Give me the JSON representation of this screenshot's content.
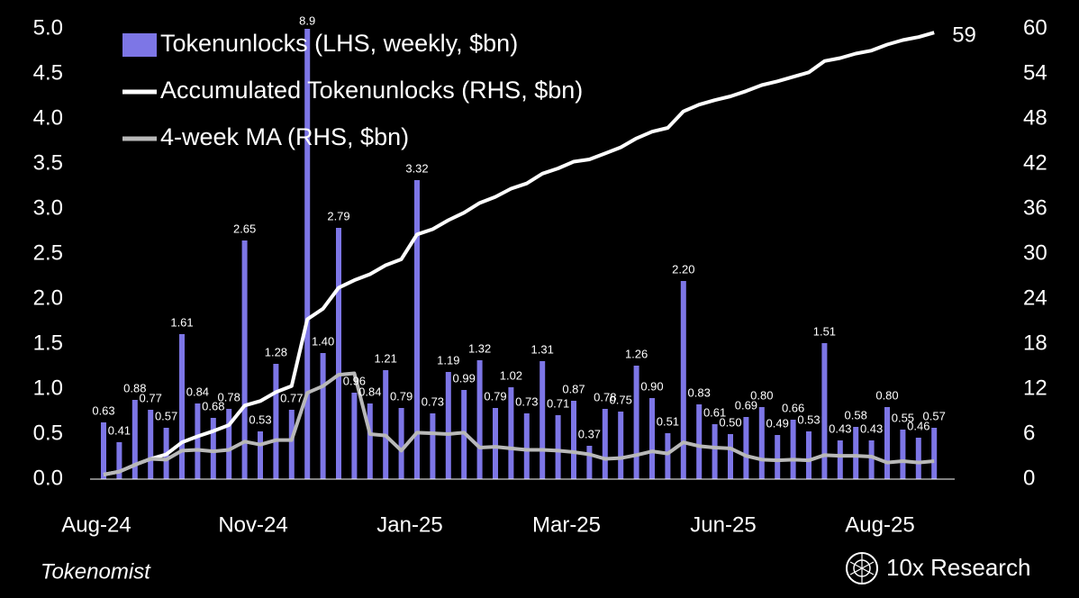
{
  "chart_data": {
    "type": "bar",
    "legend": "upper left",
    "annotation": "59",
    "source": "Tokenomist",
    "brand": "10x Research",
    "categories": [
      "Aug-24",
      null,
      null,
      null,
      null,
      null,
      null,
      null,
      null,
      null,
      "Nov-24",
      null,
      null,
      null,
      null,
      null,
      null,
      null,
      null,
      null,
      "Jan-25",
      null,
      null,
      null,
      null,
      null,
      null,
      null,
      null,
      null,
      "Mar-25",
      null,
      null,
      null,
      null,
      null,
      null,
      null,
      null,
      null,
      "Jun-25",
      null,
      null,
      null,
      null,
      null,
      null,
      null,
      null,
      null,
      "Aug-25",
      null,
      null,
      null
    ],
    "ylim": [
      0,
      5
    ],
    "yticks": [
      {
        "value": 0,
        "label": "0.0"
      },
      0.5,
      {
        "value": 1,
        "label": "1.0"
      },
      1.5,
      {
        "value": 2,
        "label": "2.0"
      },
      2.5,
      {
        "value": 3,
        "label": "3.0"
      },
      3.5,
      {
        "value": 4,
        "label": "4.0"
      },
      4.5,
      {
        "value": 5,
        "label": "5.0"
      }
    ],
    "y2lim": [
      0,
      60
    ],
    "y2ticks": [
      0,
      6,
      12,
      18,
      24,
      30,
      36,
      42,
      48,
      54,
      60
    ],
    "series": [
      {
        "name": "Tokenunlocks (LHS, weekly, $bn)",
        "type": "bar",
        "axis": "y",
        "color": "#7d76e6",
        "values": [
          0.63,
          0.41,
          0.88,
          0.77,
          0.57,
          1.61,
          0.84,
          0.68,
          0.78,
          2.65,
          0.53,
          1.28,
          0.77,
          8.9,
          1.4,
          2.79,
          0.96,
          0.84,
          1.21,
          0.79,
          3.32,
          0.73,
          1.19,
          0.99,
          1.32,
          0.79,
          1.02,
          0.73,
          1.31,
          0.71,
          0.87,
          0.37,
          0.78,
          0.75,
          1.26,
          0.9,
          0.51,
          2.2,
          0.83,
          0.61,
          0.5,
          0.69,
          0.8,
          0.49,
          0.66,
          0.53,
          1.51,
          0.43,
          0.58,
          0.43,
          0.8,
          0.55,
          0.46,
          0.57
        ],
        "value_labels": [
          "0.63",
          "0.41",
          "0.88",
          "0.77",
          "0.57",
          "1.61",
          "0.84",
          "0.68",
          "0.78",
          "2.65",
          "0.53",
          "1.28",
          "0.77",
          "8.9",
          "1.40",
          "2.79",
          "0.96",
          "0.84",
          "1.21",
          "0.79",
          "3.32",
          "0.73",
          "1.19",
          "0.99",
          "1.32",
          "0.79",
          "1.02",
          "0.73",
          "1.31",
          "0.71",
          "0.87",
          "0.37",
          "0.78",
          "0.75",
          "1.26",
          "0.90",
          "0.51",
          "2.20",
          "0.83",
          "0.61",
          "0.50",
          "0.69",
          "0.80",
          "0.49",
          "0.66",
          "0.53",
          "1.51",
          "0.43",
          "0.58",
          "0.43",
          "0.80",
          "0.55",
          "0.46",
          "0.57"
        ]
      },
      {
        "name": "Accumulated Tokenunlocks (RHS, $bn)",
        "type": "line",
        "axis": "y2",
        "color": "#ffffff",
        "values": [
          0.6,
          1.0,
          1.9,
          2.7,
          3.3,
          4.9,
          5.7,
          6.4,
          7.2,
          9.8,
          10.4,
          11.6,
          12.4,
          21.3,
          22.7,
          25.5,
          26.5,
          27.3,
          28.5,
          29.3,
          32.6,
          33.3,
          34.5,
          35.5,
          36.8,
          37.6,
          38.7,
          39.4,
          40.7,
          41.4,
          42.3,
          42.6,
          43.4,
          44.2,
          45.4,
          46.3,
          46.8,
          49.0,
          49.9,
          50.5,
          51.0,
          51.7,
          52.5,
          53.0,
          53.6,
          54.2,
          55.7,
          56.1,
          56.7,
          57.1,
          57.9,
          58.5,
          58.9,
          59.5
        ]
      },
      {
        "name": "4-week MA (RHS, $bn)",
        "type": "line",
        "axis": "y2",
        "color": "#b8b8b8",
        "values": [
          0.6,
          1.0,
          1.9,
          2.7,
          2.6,
          3.8,
          3.9,
          3.7,
          3.9,
          5.0,
          4.6,
          5.2,
          5.2,
          11.5,
          12.4,
          13.9,
          14.1,
          6.0,
          5.8,
          3.8,
          6.2,
          6.1,
          6.0,
          6.2,
          4.2,
          4.3,
          4.1,
          3.9,
          3.9,
          3.8,
          3.6,
          3.3,
          2.7,
          2.8,
          3.2,
          3.7,
          3.4,
          4.9,
          4.4,
          4.2,
          4.1,
          3.1,
          2.6,
          2.5,
          2.6,
          2.5,
          3.2,
          3.1,
          3.1,
          3.0,
          2.2,
          2.4,
          2.2,
          2.4
        ]
      }
    ]
  }
}
